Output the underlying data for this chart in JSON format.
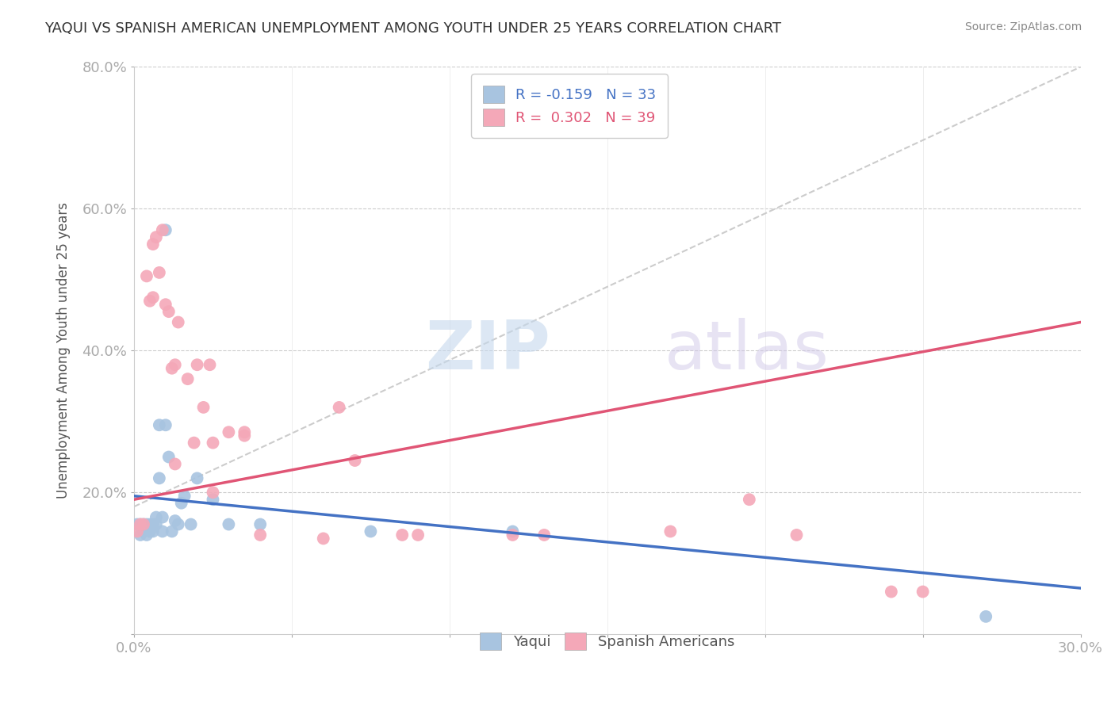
{
  "title": "YAQUI VS SPANISH AMERICAN UNEMPLOYMENT AMONG YOUTH UNDER 25 YEARS CORRELATION CHART",
  "source": "Source: ZipAtlas.com",
  "ylabel": "Unemployment Among Youth under 25 years",
  "xlim": [
    0.0,
    0.3
  ],
  "ylim": [
    0.0,
    0.8
  ],
  "xticks": [
    0.0,
    0.05,
    0.1,
    0.15,
    0.2,
    0.25,
    0.3
  ],
  "xticklabels": [
    "0.0%",
    "",
    "",
    "",
    "",
    "",
    "30.0%"
  ],
  "yticks": [
    0.0,
    0.2,
    0.4,
    0.6,
    0.8
  ],
  "yticklabels": [
    "",
    "20.0%",
    "40.0%",
    "60.0%",
    "80.0%"
  ],
  "background_color": "#ffffff",
  "grid_color": "#cccccc",
  "yaqui_color": "#a8c4e0",
  "spanish_color": "#f4a8b8",
  "yaqui_R": -0.159,
  "yaqui_N": 33,
  "spanish_R": 0.302,
  "spanish_N": 39,
  "yaqui_line_color": "#4472c4",
  "spanish_line_color": "#e05575",
  "ref_line_color": "#cccccc",
  "legend_R_color": "#4472c4",
  "legend_R2_color": "#e05575",
  "watermark_zip": "ZIP",
  "watermark_atlas": "atlas",
  "yaqui_x": [
    0.001,
    0.002,
    0.002,
    0.003,
    0.003,
    0.004,
    0.004,
    0.005,
    0.005,
    0.006,
    0.006,
    0.007,
    0.007,
    0.008,
    0.008,
    0.009,
    0.009,
    0.01,
    0.01,
    0.011,
    0.012,
    0.013,
    0.014,
    0.015,
    0.016,
    0.018,
    0.02,
    0.025,
    0.03,
    0.04,
    0.075,
    0.12,
    0.27
  ],
  "yaqui_y": [
    0.155,
    0.155,
    0.14,
    0.155,
    0.145,
    0.155,
    0.14,
    0.155,
    0.145,
    0.155,
    0.145,
    0.165,
    0.155,
    0.295,
    0.22,
    0.165,
    0.145,
    0.57,
    0.295,
    0.25,
    0.145,
    0.16,
    0.155,
    0.185,
    0.195,
    0.155,
    0.22,
    0.19,
    0.155,
    0.155,
    0.145,
    0.145,
    0.025
  ],
  "spanish_x": [
    0.001,
    0.002,
    0.003,
    0.004,
    0.005,
    0.006,
    0.006,
    0.007,
    0.008,
    0.009,
    0.01,
    0.011,
    0.012,
    0.013,
    0.013,
    0.014,
    0.017,
    0.019,
    0.02,
    0.022,
    0.024,
    0.025,
    0.025,
    0.03,
    0.035,
    0.035,
    0.04,
    0.06,
    0.065,
    0.07,
    0.085,
    0.09,
    0.12,
    0.13,
    0.17,
    0.195,
    0.21,
    0.24,
    0.25
  ],
  "spanish_y": [
    0.145,
    0.155,
    0.155,
    0.505,
    0.47,
    0.55,
    0.475,
    0.56,
    0.51,
    0.57,
    0.465,
    0.455,
    0.375,
    0.24,
    0.38,
    0.44,
    0.36,
    0.27,
    0.38,
    0.32,
    0.38,
    0.2,
    0.27,
    0.285,
    0.28,
    0.285,
    0.14,
    0.135,
    0.32,
    0.245,
    0.14,
    0.14,
    0.14,
    0.14,
    0.145,
    0.19,
    0.14,
    0.06,
    0.06
  ]
}
